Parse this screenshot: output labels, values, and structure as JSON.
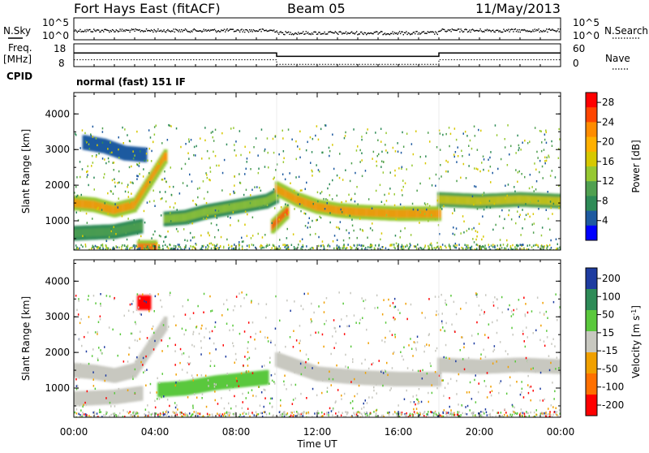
{
  "header": {
    "station": "Fort Hays East (fitACF)",
    "beam": "Beam 05",
    "date": "11/May/2013"
  },
  "noise_panel": {
    "left_label": "N.Sky",
    "right_label": "N.Search",
    "tick_top": "10^5",
    "tick_bottom": "10^0"
  },
  "freq_panel": {
    "left_label_top": "Freq.",
    "left_label_bottom": "[MHz]",
    "left_tick_top": "18",
    "left_tick_bottom": "8",
    "right_label": "Nave",
    "right_tick_top": "60",
    "right_tick_bottom": "0"
  },
  "cpid": {
    "label": "CPID",
    "value": "normal (fast) 151 IF"
  },
  "power_colorbar": {
    "label": "Power [dB]",
    "ticks": [
      "28",
      "24",
      "20",
      "16",
      "12",
      "8",
      "4"
    ],
    "colors": [
      "#ff0000",
      "#ff4500",
      "#ff8c00",
      "#ffb000",
      "#d7c800",
      "#96c832",
      "#50a050",
      "#2e8b57",
      "#1e5aa0",
      "#0000ff"
    ]
  },
  "velocity_colorbar": {
    "label": "Velocity [m s",
    "label_sup": "-1",
    "label_end": "]",
    "ticks": [
      "200",
      "100",
      "50",
      "15",
      "-15",
      "-50",
      "-100",
      "-200"
    ],
    "colors": [
      "#1e3ca0",
      "#2e8b57",
      "#5ac83c",
      "#c8c8c0",
      "#f0a000",
      "#ff7000",
      "#ff0000"
    ]
  },
  "axes": {
    "ylabel": "Slant Range [km]",
    "yticks": [
      "4000",
      "3000",
      "2000",
      "1000"
    ],
    "xticks": [
      "00:00",
      "04:00",
      "08:00",
      "12:00",
      "16:00",
      "20:00",
      "00:00"
    ],
    "xlabel": "Time UT"
  },
  "chart_data": [
    {
      "type": "line",
      "title": "Noise (N.Sky, N.Search)",
      "x_units": "hours UT",
      "xlim": [
        0,
        24
      ],
      "y_scale": "log",
      "ylim_label": [
        "10^0",
        "10^5"
      ]
    },
    {
      "type": "line",
      "title": "Freq. [MHz] / Nave",
      "x_units": "hours UT",
      "xlim": [
        0,
        24
      ],
      "series": [
        {
          "name": "Freq.",
          "x": [
            0,
            10,
            10,
            18,
            18,
            24
          ],
          "y": [
            14,
            14,
            12.5,
            12.5,
            14,
            14
          ]
        },
        {
          "name": "Nave",
          "x": [
            0,
            10,
            10,
            18,
            18,
            24
          ],
          "y": [
            18,
            18,
            6,
            6,
            18,
            18
          ]
        }
      ]
    },
    {
      "type": "heatmap",
      "title": "Power [dB]",
      "xlabel": "Time UT",
      "ylabel": "Slant Range [km]",
      "xlim": [
        0,
        24
      ],
      "ylim": [
        180,
        4600
      ],
      "zlim": [
        0,
        30
      ],
      "bands": [
        {
          "x": [
            0,
            1,
            2,
            3,
            4.5
          ],
          "y": [
            1500,
            1450,
            1300,
            1450,
            2800
          ],
          "power": 24
        },
        {
          "x": [
            0,
            2,
            3.3
          ],
          "y": [
            650,
            700,
            850
          ],
          "power": 12
        },
        {
          "x": [
            0.5,
            1.5,
            2.5,
            3.5
          ],
          "y": [
            3200,
            3100,
            2900,
            2850
          ],
          "power": 6
        },
        {
          "x": [
            4.5,
            5.5,
            6.5,
            7.5,
            8.5,
            9.5,
            10
          ],
          "y": [
            1050,
            1100,
            1250,
            1350,
            1450,
            1550,
            1700
          ],
          "power": 14
        },
        {
          "x": [
            10,
            11,
            12,
            13,
            14,
            16,
            18
          ],
          "y": [
            1900,
            1600,
            1400,
            1300,
            1250,
            1200,
            1200
          ],
          "power": 24
        },
        {
          "x": [
            18,
            20,
            22,
            24
          ],
          "y": [
            1600,
            1550,
            1600,
            1550
          ],
          "power": 18
        },
        {
          "x": [
            9.8,
            10.5
          ],
          "y": [
            850,
            1250
          ],
          "power": 26
        },
        {
          "x": [
            3.2,
            4.0
          ],
          "y": [
            250,
            250
          ],
          "power": 26
        }
      ]
    },
    {
      "type": "heatmap",
      "title": "Velocity [m s-1]",
      "xlabel": "Time UT",
      "ylabel": "Slant Range [km]",
      "xlim": [
        0,
        24
      ],
      "ylim": [
        180,
        4600
      ],
      "zlim": [
        -200,
        200
      ],
      "bands": [
        {
          "x": [
            0,
            1,
            2,
            3,
            4.5
          ],
          "y": [
            1500,
            1450,
            1350,
            1500,
            2800
          ],
          "velocity": 0
        },
        {
          "x": [
            0,
            2,
            3.3
          ],
          "y": [
            700,
            750,
            850
          ],
          "velocity": 0
        },
        {
          "x": [
            4.2,
            5.5,
            7,
            9.5
          ],
          "y": [
            950,
            1000,
            1150,
            1300
          ],
          "velocity": 40
        },
        {
          "x": [
            10,
            12,
            14,
            16,
            18
          ],
          "y": [
            1800,
            1400,
            1300,
            1250,
            1250
          ],
          "velocity": 0
        },
        {
          "x": [
            18,
            20,
            22,
            24
          ],
          "y": [
            1650,
            1600,
            1650,
            1600
          ],
          "velocity": 0
        },
        {
          "x": [
            3.2
          ],
          "y": [
            3400
          ],
          "velocity": -200
        }
      ]
    }
  ]
}
